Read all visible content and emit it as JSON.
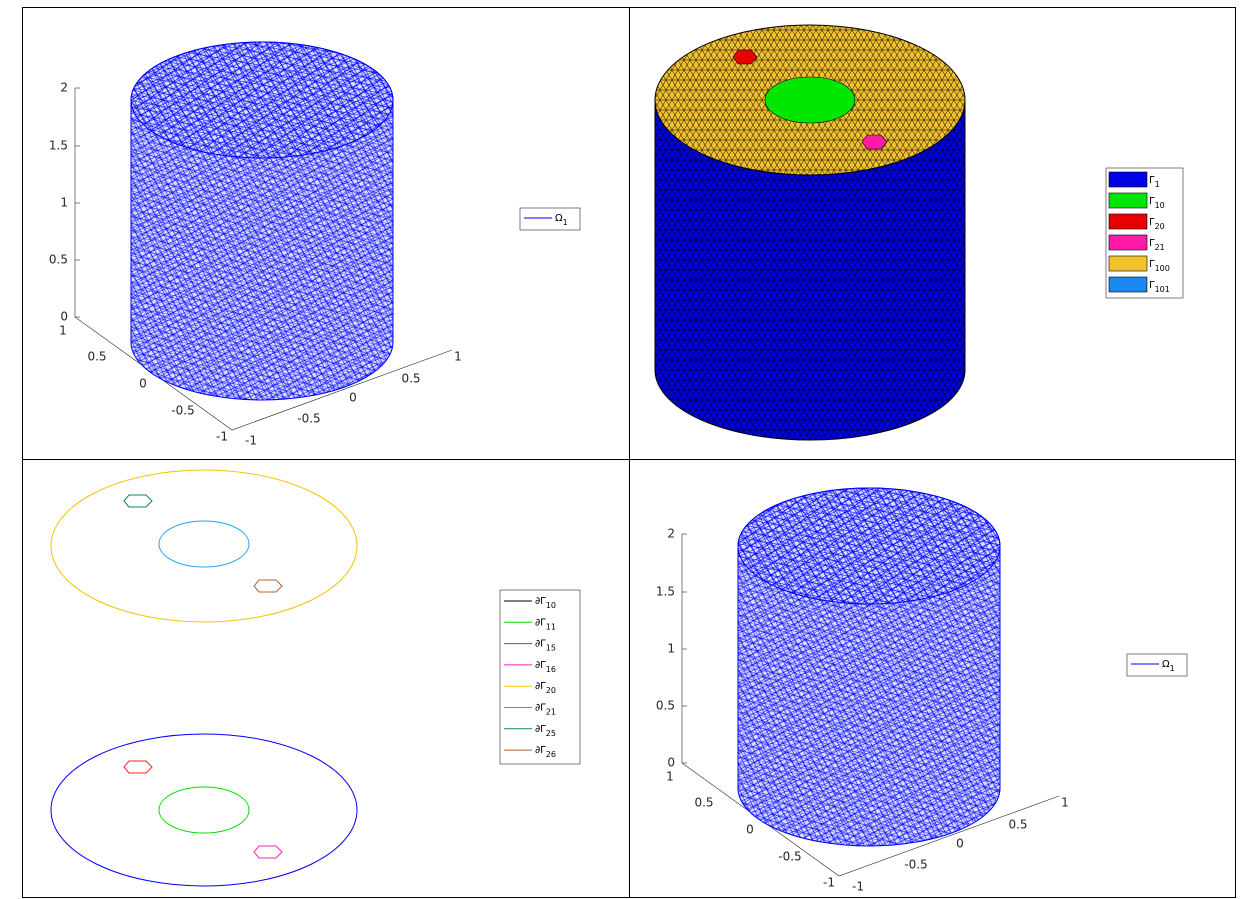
{
  "panels": [
    {
      "zticks": [
        0,
        0.5,
        1,
        1.5,
        2
      ],
      "yticks": [
        -1,
        -0.5,
        0,
        0.5,
        1
      ],
      "xticks": [
        -1,
        -0.5,
        0,
        0.5,
        1
      ],
      "legend": [
        {
          "symbol": "Ω",
          "subscript": "1",
          "color": "#0000ff"
        }
      ]
    },
    {
      "legend": [
        {
          "symbol": "Γ",
          "subscript": "1",
          "color": "#0000e6"
        },
        {
          "symbol": "Γ",
          "subscript": "10",
          "color": "#00e600"
        },
        {
          "symbol": "Γ",
          "subscript": "20",
          "color": "#e60000"
        },
        {
          "symbol": "Γ",
          "subscript": "21",
          "color": "#ff1aa8"
        },
        {
          "symbol": "Γ",
          "subscript": "100",
          "color": "#f2c12e"
        },
        {
          "symbol": "Γ",
          "subscript": "101",
          "color": "#1a88f0"
        }
      ]
    },
    {
      "legend": [
        {
          "symbol": "∂Γ",
          "subscript": "10",
          "color": "#000000"
        },
        {
          "symbol": "∂Γ",
          "subscript": "11",
          "color": "#00dd00"
        },
        {
          "symbol": "∂Γ",
          "subscript": "15",
          "color": "#ff2020"
        },
        {
          "symbol": "∂Γ",
          "subscript": "16",
          "color": "#ff20c0"
        },
        {
          "symbol": "∂Γ",
          "subscript": "20",
          "color": "#f5c400"
        },
        {
          "symbol": "∂Γ",
          "subscript": "21",
          "color": "#20a0f0"
        },
        {
          "symbol": "∂Γ",
          "subscript": "25",
          "color": "#108060"
        },
        {
          "symbol": "∂Γ",
          "subscript": "26",
          "color": "#b06030"
        }
      ]
    },
    {
      "zticks": [
        0,
        0.5,
        1,
        1.5,
        2
      ],
      "yticks": [
        -1,
        -0.5,
        0,
        0.5,
        1
      ],
      "xticks": [
        -1,
        -0.5,
        0,
        0.5,
        1
      ],
      "legend": [
        {
          "symbol": "Ω",
          "subscript": "1",
          "color": "#0000ff"
        }
      ]
    }
  ]
}
